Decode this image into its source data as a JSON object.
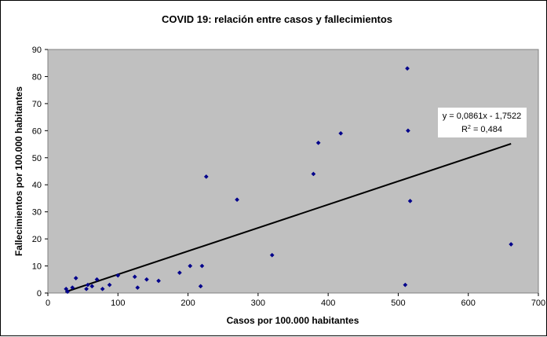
{
  "chart_data": {
    "type": "scatter",
    "title": "COVID 19: relación entre casos y fallecimientos",
    "xlabel": "Casos por 100.000 habitantes",
    "ylabel": "Fallecimientos por 100.000 habitantes",
    "xlim": [
      0,
      700
    ],
    "ylim": [
      0,
      90
    ],
    "xticks": [
      0,
      100,
      200,
      300,
      400,
      500,
      600,
      700
    ],
    "yticks": [
      0,
      10,
      20,
      30,
      40,
      50,
      60,
      70,
      80,
      90
    ],
    "grid": false,
    "plot_background": "#c0c0c0",
    "point_color": "#00008b",
    "trendline": {
      "type": "linear",
      "slope": 0.0861,
      "intercept": -1.7522,
      "x_range": [
        25,
        661
      ],
      "color": "#000000",
      "equation_line": "y = 0,0861x - 1,7522",
      "r2_prefix": "R",
      "r2_superscript": "2",
      "r2_value": " = 0,484"
    },
    "points": [
      {
        "x": 26,
        "y": 1.5
      },
      {
        "x": 28,
        "y": 0.5
      },
      {
        "x": 35,
        "y": 2
      },
      {
        "x": 40,
        "y": 5.5
      },
      {
        "x": 55,
        "y": 1.5
      },
      {
        "x": 57,
        "y": 3
      },
      {
        "x": 63,
        "y": 2.5
      },
      {
        "x": 70,
        "y": 5
      },
      {
        "x": 78,
        "y": 1.5
      },
      {
        "x": 88,
        "y": 3
      },
      {
        "x": 100,
        "y": 6.5
      },
      {
        "x": 124,
        "y": 6
      },
      {
        "x": 128,
        "y": 2
      },
      {
        "x": 141,
        "y": 5
      },
      {
        "x": 158,
        "y": 4.5
      },
      {
        "x": 188,
        "y": 7.5
      },
      {
        "x": 203,
        "y": 10
      },
      {
        "x": 218,
        "y": 2.5
      },
      {
        "x": 220,
        "y": 10
      },
      {
        "x": 226,
        "y": 43
      },
      {
        "x": 270,
        "y": 34.5
      },
      {
        "x": 320,
        "y": 14
      },
      {
        "x": 379,
        "y": 44
      },
      {
        "x": 386,
        "y": 55.5
      },
      {
        "x": 418,
        "y": 59
      },
      {
        "x": 510,
        "y": 3
      },
      {
        "x": 513,
        "y": 83
      },
      {
        "x": 514,
        "y": 60
      },
      {
        "x": 517,
        "y": 34
      },
      {
        "x": 661,
        "y": 18
      }
    ]
  }
}
